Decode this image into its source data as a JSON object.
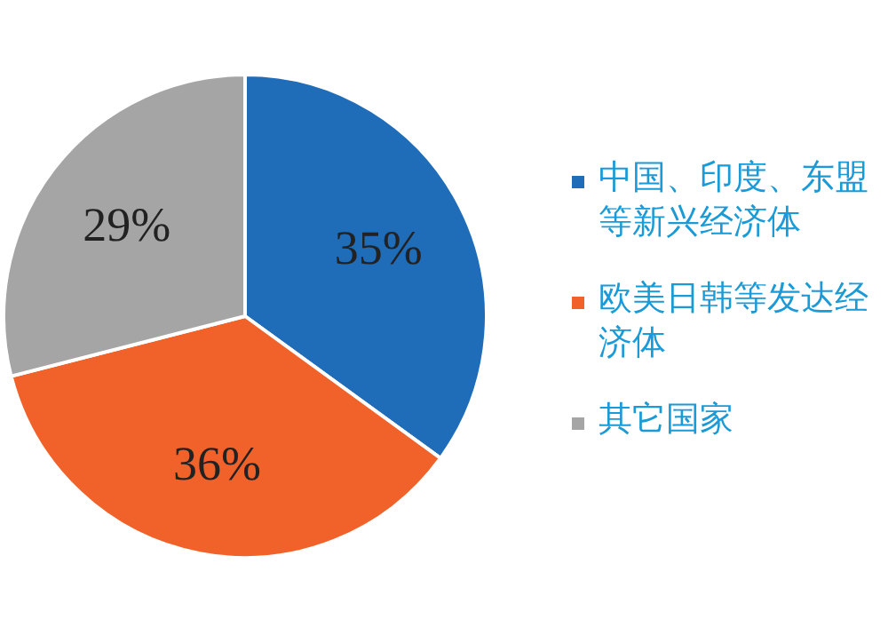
{
  "chart_data": {
    "type": "pie",
    "categories": [
      "中国、印度、东盟等新兴经济体",
      "欧美日韩等发达经济体",
      "其它国家"
    ],
    "values": [
      35,
      36,
      29
    ],
    "value_labels": [
      "35%",
      "36%",
      "29%"
    ],
    "colors": [
      "#1f6cb8",
      "#f0622a",
      "#a5a5a5"
    ],
    "legend": "right"
  }
}
